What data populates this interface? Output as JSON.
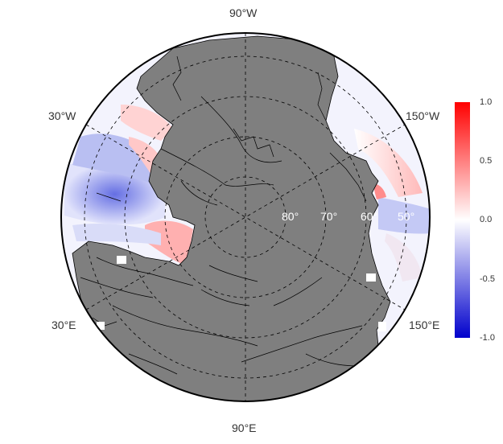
{
  "map": {
    "projection": "north polar stereographic",
    "land_color": "#7f7f7f",
    "graticule_style": "dashed",
    "longitude_labels": {
      "top": "90°W",
      "bottom": "90°E",
      "upper_left": "30°W",
      "upper_right": "150°W",
      "lower_left": "30°E",
      "lower_right": "150°E"
    },
    "latitude_labels": [
      "80°",
      "70°",
      "60°",
      "50°"
    ]
  },
  "legend": {
    "ticks": [
      "1.0",
      "0.5",
      "0.0",
      "-0.5",
      "-1.0"
    ],
    "colors": {
      "high": "#ff0000",
      "mid": "#ffffff",
      "low": "#0000cc"
    }
  }
}
